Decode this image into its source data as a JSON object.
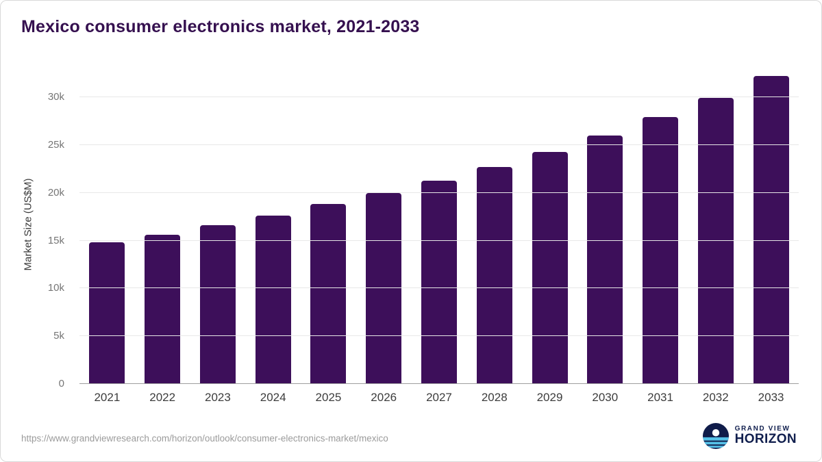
{
  "title": "Mexico consumer electronics market, 2021-2033",
  "footer": {
    "source_url": "https://www.grandviewresearch.com/horizon/outlook/consumer-electronics-market/mexico",
    "brand_top": "GRAND VIEW",
    "brand_bottom": "HORIZON"
  },
  "colors": {
    "bar": "#3d0f5a",
    "title": "#35104f",
    "gridline": "#e8e8e8",
    "axis_line": "#9e9e9e",
    "tick_label": "#757575",
    "x_label": "#3c3c3c",
    "brand_navy": "#111f4e",
    "brand_blue": "#56c1e8"
  },
  "chart_data": {
    "type": "bar",
    "title": "Mexico consumer electronics market, 2021-2033",
    "xlabel": "",
    "ylabel": "Market Size (US$M)",
    "categories": [
      "2021",
      "2022",
      "2023",
      "2024",
      "2025",
      "2026",
      "2027",
      "2028",
      "2029",
      "2030",
      "2031",
      "2032",
      "2033"
    ],
    "values": [
      14800,
      15600,
      16600,
      17600,
      18800,
      20000,
      21300,
      22700,
      24300,
      26000,
      27900,
      29900,
      32200
    ],
    "ylim": [
      0,
      33300
    ],
    "yticks": [
      {
        "value": 0,
        "label": "0"
      },
      {
        "value": 5000,
        "label": "5k"
      },
      {
        "value": 10000,
        "label": "10k"
      },
      {
        "value": 15000,
        "label": "15k"
      },
      {
        "value": 20000,
        "label": "20k"
      },
      {
        "value": 25000,
        "label": "25k"
      },
      {
        "value": 30000,
        "label": "30k"
      }
    ],
    "grid": true,
    "legend": false
  }
}
